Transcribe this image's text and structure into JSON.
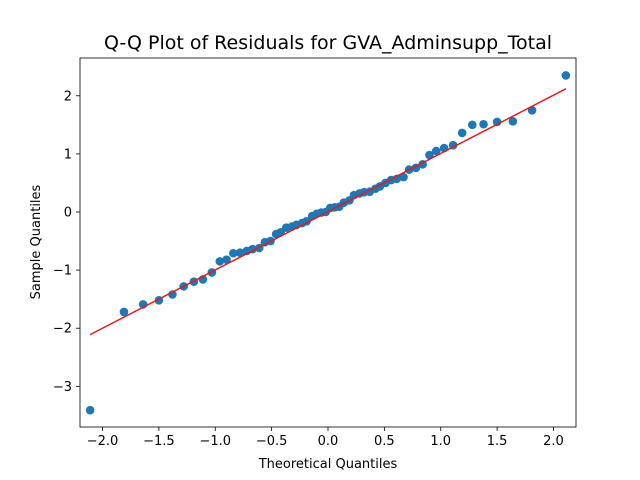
{
  "chart_data": {
    "type": "scatter",
    "title": "Q-Q Plot of Residuals for GVA_Adminsupp_Total",
    "xlabel": "Theoretical Quantiles",
    "ylabel": "Sample Quantiles",
    "xlim": [
      -2.2,
      2.2
    ],
    "ylim": [
      -3.7,
      2.65
    ],
    "xticks": [
      -2.0,
      -1.5,
      -1.0,
      -0.5,
      0.0,
      0.5,
      1.0,
      1.5,
      2.0
    ],
    "xtick_labels": [
      "−2.0",
      "−1.5",
      "−1.0",
      "−0.5",
      "0.0",
      "0.5",
      "1.0",
      "1.5",
      "2.0"
    ],
    "yticks": [
      -3,
      -2,
      -1,
      0,
      1,
      2
    ],
    "ytick_labels": [
      "−3",
      "−2",
      "−1",
      "0",
      "1",
      "2"
    ],
    "grid": false,
    "marker_color": "#1f77b4",
    "line_color": "#e41a1c",
    "reference_line": {
      "x": [
        -2.11,
        2.11
      ],
      "y": [
        -2.11,
        2.12
      ]
    },
    "points": [
      [
        -2.11,
        -3.41
      ],
      [
        -1.81,
        -1.72
      ],
      [
        -1.64,
        -1.59
      ],
      [
        -1.5,
        -1.52
      ],
      [
        -1.38,
        -1.42
      ],
      [
        -1.28,
        -1.28
      ],
      [
        -1.19,
        -1.2
      ],
      [
        -1.11,
        -1.16
      ],
      [
        -1.03,
        -1.04
      ],
      [
        -0.96,
        -0.85
      ],
      [
        -0.9,
        -0.82
      ],
      [
        -0.84,
        -0.71
      ],
      [
        -0.78,
        -0.7
      ],
      [
        -0.72,
        -0.67
      ],
      [
        -0.67,
        -0.64
      ],
      [
        -0.61,
        -0.62
      ],
      [
        -0.56,
        -0.52
      ],
      [
        -0.51,
        -0.5
      ],
      [
        -0.46,
        -0.38
      ],
      [
        -0.42,
        -0.35
      ],
      [
        -0.37,
        -0.27
      ],
      [
        -0.32,
        -0.25
      ],
      [
        -0.28,
        -0.22
      ],
      [
        -0.23,
        -0.19
      ],
      [
        -0.19,
        -0.16
      ],
      [
        -0.14,
        -0.07
      ],
      [
        -0.1,
        -0.03
      ],
      [
        -0.06,
        -0.01
      ],
      [
        -0.02,
        0.0
      ],
      [
        0.02,
        0.07
      ],
      [
        0.06,
        0.08
      ],
      [
        0.1,
        0.09
      ],
      [
        0.14,
        0.16
      ],
      [
        0.19,
        0.2
      ],
      [
        0.23,
        0.29
      ],
      [
        0.28,
        0.32
      ],
      [
        0.32,
        0.34
      ],
      [
        0.37,
        0.35
      ],
      [
        0.42,
        0.4
      ],
      [
        0.46,
        0.44
      ],
      [
        0.51,
        0.5
      ],
      [
        0.56,
        0.55
      ],
      [
        0.61,
        0.57
      ],
      [
        0.67,
        0.6
      ],
      [
        0.72,
        0.73
      ],
      [
        0.78,
        0.76
      ],
      [
        0.84,
        0.82
      ],
      [
        0.9,
        0.98
      ],
      [
        0.96,
        1.05
      ],
      [
        1.03,
        1.1
      ],
      [
        1.11,
        1.15
      ],
      [
        1.19,
        1.36
      ],
      [
        1.28,
        1.5
      ],
      [
        1.38,
        1.51
      ],
      [
        1.5,
        1.55
      ],
      [
        1.64,
        1.56
      ],
      [
        1.81,
        1.75
      ],
      [
        2.11,
        2.35
      ]
    ]
  }
}
